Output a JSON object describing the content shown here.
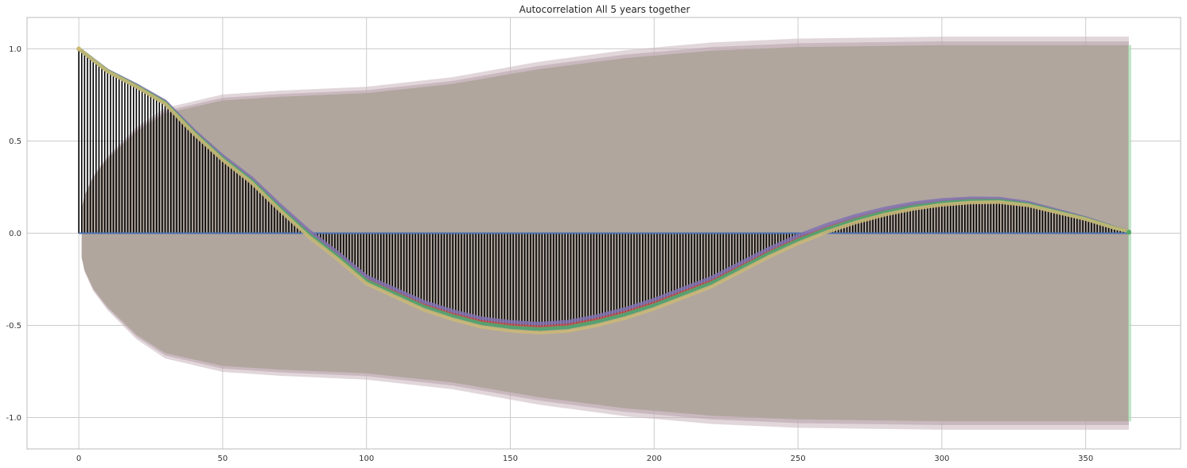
{
  "chart_data": {
    "type": "line",
    "title": "Autocorrelation All 5 years together",
    "xlabel": "",
    "ylabel": "",
    "xlim": [
      -18,
      383
    ],
    "ylim": [
      -1.17,
      1.17
    ],
    "x_ticks": [
      0,
      50,
      100,
      150,
      200,
      250,
      300,
      350
    ],
    "x_tick_labels": [
      "0",
      "50",
      "100",
      "150",
      "200",
      "250",
      "300",
      "350"
    ],
    "y_ticks": [
      1.0,
      0.5,
      0.0,
      -0.5,
      -1.0
    ],
    "y_tick_labels": [
      "1.0",
      "0.5",
      "0.0",
      "-0.5",
      "-1.0"
    ],
    "grid": true,
    "legend": "none",
    "max_lag": 365,
    "acf_keypoints": {
      "x": [
        0,
        10,
        20,
        30,
        40,
        50,
        60,
        70,
        80,
        90,
        100,
        110,
        120,
        130,
        140,
        150,
        160,
        170,
        180,
        190,
        200,
        210,
        220,
        230,
        240,
        250,
        260,
        270,
        280,
        290,
        300,
        310,
        320,
        330,
        340,
        350,
        360,
        365
      ],
      "y": [
        1.0,
        0.88,
        0.8,
        0.71,
        0.55,
        0.41,
        0.29,
        0.14,
        0.0,
        -0.12,
        -0.25,
        -0.32,
        -0.39,
        -0.44,
        -0.48,
        -0.5,
        -0.51,
        -0.5,
        -0.47,
        -0.43,
        -0.38,
        -0.32,
        -0.26,
        -0.18,
        -0.1,
        -0.03,
        0.03,
        0.08,
        0.12,
        0.15,
        0.17,
        0.18,
        0.18,
        0.16,
        0.12,
        0.08,
        0.03,
        0.01
      ]
    },
    "confidence_band_keypoints": {
      "x": [
        0,
        1,
        2,
        5,
        10,
        20,
        30,
        50,
        70,
        100,
        130,
        160,
        190,
        220,
        250,
        300,
        350,
        365
      ],
      "y": [
        0.1,
        0.13,
        0.2,
        0.3,
        0.4,
        0.55,
        0.65,
        0.72,
        0.74,
        0.76,
        0.81,
        0.89,
        0.95,
        0.99,
        1.01,
        1.02,
        1.02,
        1.02
      ]
    },
    "series": [
      {
        "color": "#c44e52",
        "offset": 0.0
      },
      {
        "color": "#8172b2",
        "offset": 0.02
      },
      {
        "color": "#4c72b0",
        "offset": -0.015
      },
      {
        "color": "#55a868",
        "offset": -0.01
      },
      {
        "color": "#ccb974",
        "offset": -0.03
      }
    ],
    "colors": {
      "band": "#b0a69e",
      "band_outer": "#c9b5bc",
      "band_green_edge": "#a8d8b0",
      "stem": "#000000",
      "baseline": "#4c72b0",
      "grid": "#cccccc",
      "axis_frame": "#bbbbbb"
    }
  }
}
